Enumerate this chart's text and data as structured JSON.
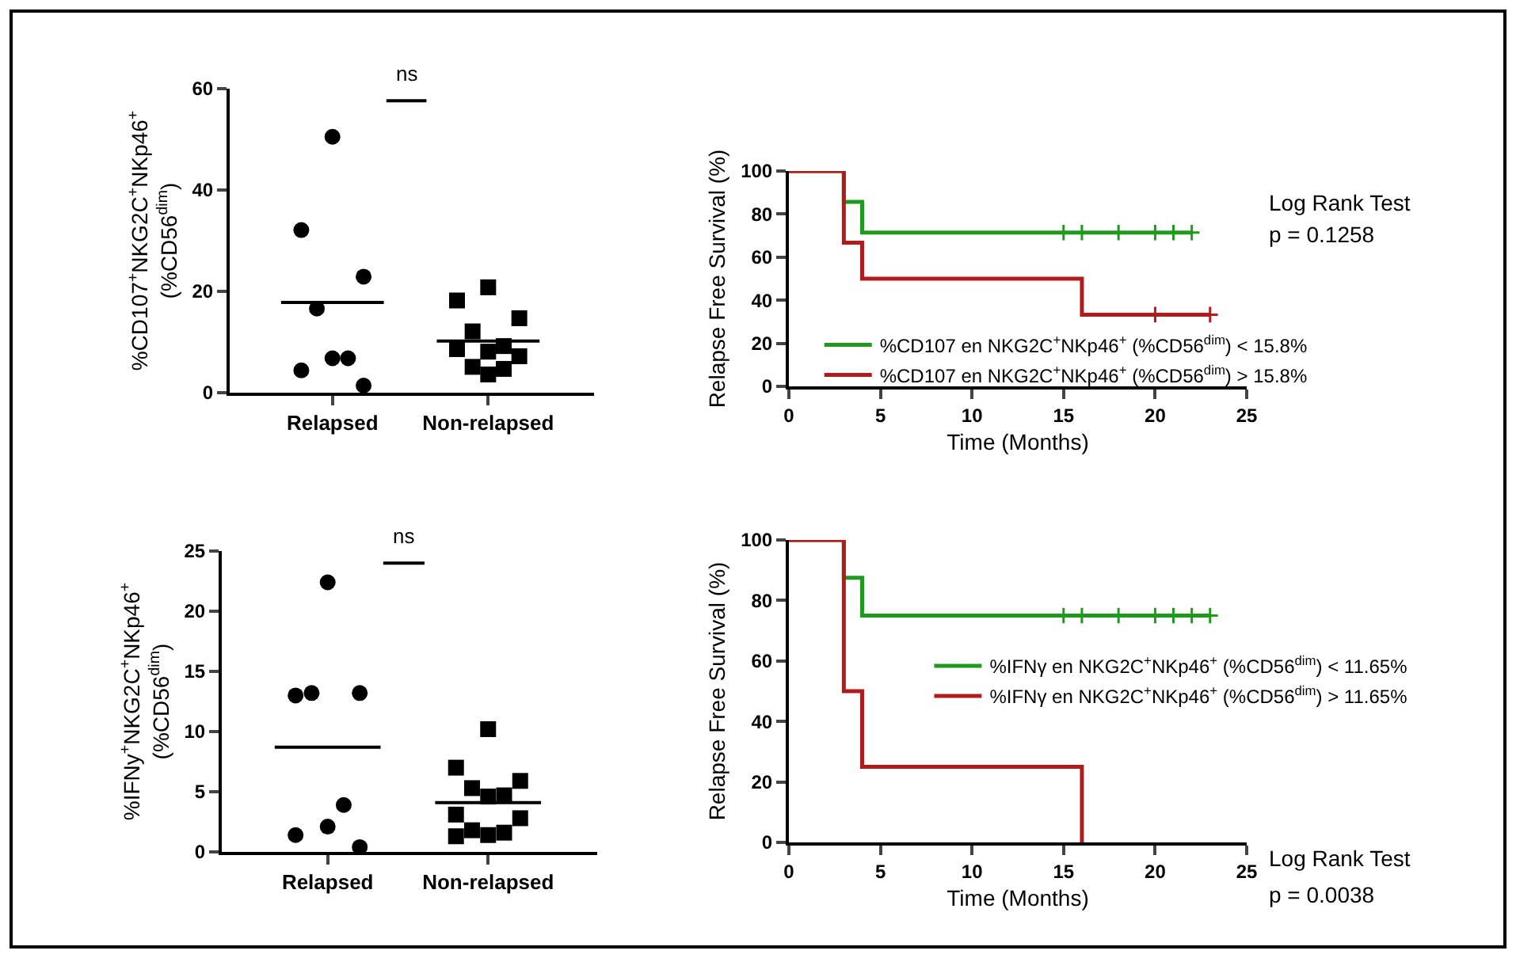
{
  "chart_data": [
    {
      "type": "scatter",
      "categories": [
        "Relapsed",
        "Non-relapsed"
      ],
      "ylabel": "%CD107$^{+}$NKG2C$^{+}$NKp46$^{+}$\n(%CD56$^{dim}$)",
      "ylim": [
        0,
        60
      ],
      "yticks": [
        0,
        20,
        40,
        60
      ],
      "grid": false,
      "legend": false,
      "annotations": [
        "ns"
      ],
      "series": [
        {
          "marker": "circle",
          "color": "#000000",
          "x": [
            "Relapsed",
            "Relapsed",
            "Relapsed",
            "Relapsed",
            "Relapsed",
            "Relapsed",
            "Relapsed",
            "Relapsed"
          ],
          "values": [
            50.5,
            32.1,
            22.9,
            16.6,
            6.8,
            6.8,
            4.4,
            1.4
          ]
        },
        {
          "marker": "square",
          "color": "#000000",
          "x": [
            "Non-relapsed",
            "Non-relapsed",
            "Non-relapsed",
            "Non-relapsed",
            "Non-relapsed",
            "Non-relapsed",
            "Non-relapsed",
            "Non-relapsed",
            "Non-relapsed",
            "Non-relapsed",
            "Non-relapsed"
          ],
          "values": [
            20.8,
            18.2,
            14.7,
            12.1,
            9.2,
            8.1,
            8.6,
            7.2,
            5.1,
            4.7,
            3.6
          ]
        }
      ],
      "ref_lines": [
        {
          "axis": "y",
          "value": 17.8,
          "color": "#000000"
        },
        {
          "axis": "y",
          "value": 10.2,
          "color": "#000000"
        }
      ]
    },
    {
      "type": "step",
      "xlabel": "Time (Months)",
      "ylabel": "Relapse Free Survival (%)",
      "xlim": [
        0,
        25
      ],
      "xticks": [
        0,
        5,
        10,
        15,
        20,
        25
      ],
      "ylim": [
        0,
        100
      ],
      "yticks": [
        0,
        20,
        40,
        60,
        80,
        100
      ],
      "grid": false,
      "legend": "bottom",
      "annotations": [
        "Log Rank Test",
        "p = 0.1258"
      ],
      "series": [
        {
          "name": "%CD107 en NKG2C$^{+}$NKp46$^{+}$ (%CD56$^{dim}$) < 15.8%",
          "color": "#1f9a1f",
          "x": [
            0,
            3,
            4,
            22
          ],
          "values": [
            100,
            85.7,
            71.4,
            71.4
          ]
        },
        {
          "name": "%CD107 en NKG2C$^{+}$NKp46$^{+}$ (%CD56$^{dim}$) > 15.8%",
          "color": "#b01c1c",
          "x": [
            0,
            3,
            4,
            16,
            23
          ],
          "values": [
            100,
            66.7,
            50,
            33.3,
            33.3
          ]
        },
        {
          "type": "scatter",
          "marker": "cross",
          "color": "#1f9a1f",
          "x": [
            15,
            16,
            18,
            20,
            21,
            22
          ],
          "values": [
            71.4,
            71.4,
            71.4,
            71.4,
            71.4,
            71.4
          ]
        },
        {
          "type": "scatter",
          "marker": "cross",
          "color": "#b01c1c",
          "x": [
            20,
            23
          ],
          "values": [
            33.3,
            33.3
          ]
        }
      ]
    },
    {
      "type": "scatter",
      "categories": [
        "Relapsed",
        "Non-relapsed"
      ],
      "ylabel": "%IFNy$^{+}$NKG2C$^{+}$NKp46$^{+}$\n(%CD56$^{dim}$)",
      "ylim": [
        0,
        25
      ],
      "yticks": [
        0,
        5,
        10,
        15,
        20,
        25
      ],
      "grid": false,
      "legend": false,
      "annotations": [
        "ns"
      ],
      "series": [
        {
          "marker": "circle",
          "color": "#000000",
          "x": [
            "Relapsed",
            "Relapsed",
            "Relapsed",
            "Relapsed",
            "Relapsed",
            "Relapsed",
            "Relapsed",
            "Relapsed"
          ],
          "values": [
            22.4,
            13.0,
            13.2,
            13.2,
            3.9,
            2.1,
            1.4,
            0.4
          ]
        },
        {
          "marker": "square",
          "color": "#000000",
          "x": [
            "Non-relapsed",
            "Non-relapsed",
            "Non-relapsed",
            "Non-relapsed",
            "Non-relapsed",
            "Non-relapsed",
            "Non-relapsed",
            "Non-relapsed",
            "Non-relapsed",
            "Non-relapsed",
            "Non-relapsed",
            "Non-relapsed"
          ],
          "values": [
            10.2,
            7.0,
            5.9,
            5.3,
            4.7,
            4.6,
            3.1,
            2.8,
            1.8,
            1.6,
            1.4,
            1.3
          ]
        }
      ],
      "ref_lines": [
        {
          "axis": "y",
          "value": 8.7,
          "color": "#000000"
        },
        {
          "axis": "y",
          "value": 4.1,
          "color": "#000000"
        }
      ]
    },
    {
      "type": "step",
      "xlabel": "Time (Months)",
      "ylabel": "Relapse Free Survival (%)",
      "xlim": [
        0,
        25
      ],
      "xticks": [
        0,
        5,
        10,
        15,
        20,
        25
      ],
      "ylim": [
        0,
        100
      ],
      "yticks": [
        0,
        20,
        40,
        60,
        80,
        100
      ],
      "grid": false,
      "legend": "right",
      "annotations": [
        "Log Rank Test",
        "p = 0.0038"
      ],
      "series": [
        {
          "name": "%IFNγ en NKG2C$^{+}$NKp46$^{+}$ (%CD56$^{dim}$) < 11.65%",
          "color": "#1f9a1f",
          "x": [
            0,
            3,
            4,
            23
          ],
          "values": [
            100,
            87.5,
            75,
            75
          ]
        },
        {
          "name": "%IFNγ en NKG2C$^{+}$NKp46$^{+}$ (%CD56$^{dim}$) > 11.65%",
          "color": "#b01c1c",
          "x": [
            0,
            3,
            4,
            16
          ],
          "values": [
            100,
            50,
            25,
            0
          ]
        },
        {
          "type": "scatter",
          "marker": "cross",
          "color": "#1f9a1f",
          "x": [
            15,
            16,
            18,
            20,
            21,
            22,
            23
          ],
          "values": [
            75,
            75,
            75,
            75,
            75,
            75,
            75
          ]
        }
      ]
    }
  ]
}
